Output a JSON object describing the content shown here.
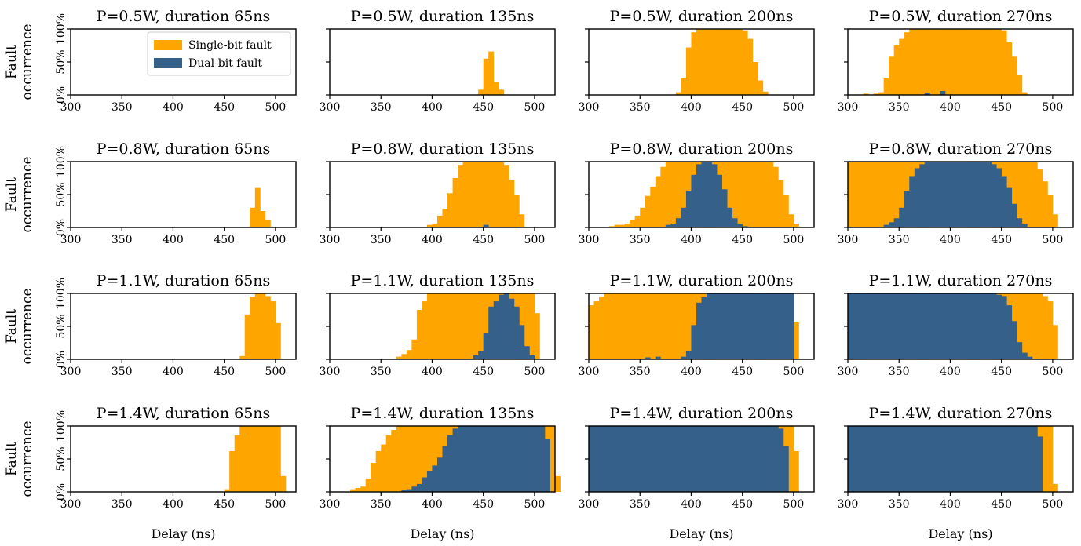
{
  "figure": {
    "colors": {
      "single": "#FFA500",
      "dual": "#34608A"
    },
    "legend": {
      "placement": "top-right of first panel",
      "items": [
        "Single-bit fault",
        "Dual-bit fault"
      ]
    },
    "ylabel_lines": [
      "Fault",
      "occurrence"
    ],
    "xlabel": "Delay (ns)",
    "xticks": [
      "300",
      "350",
      "400",
      "450",
      "500"
    ],
    "yticks": [
      "0%",
      "50%",
      "100%"
    ]
  },
  "chart_data": [
    {
      "type": "bar",
      "title": "P=0.5W, duration 65ns",
      "xlim": [
        300,
        520
      ],
      "ylim": [
        0,
        100
      ],
      "x_start": 300,
      "bin_width": 5,
      "single": [],
      "dual": []
    },
    {
      "type": "bar",
      "title": "P=0.5W, duration 135ns",
      "xlim": [
        300,
        520
      ],
      "ylim": [
        0,
        100
      ],
      "x_start": 445,
      "bin_width": 5,
      "single": [
        8,
        55,
        66,
        20,
        8
      ],
      "dual": []
    },
    {
      "type": "bar",
      "title": "P=0.5W, duration 200ns",
      "xlim": [
        300,
        520
      ],
      "ylim": [
        0,
        100
      ],
      "x_start": 385,
      "bin_width": 5,
      "single": [
        4,
        25,
        72,
        95,
        100,
        100,
        100,
        100,
        100,
        100,
        100,
        100,
        100,
        98,
        85,
        50,
        22,
        5
      ],
      "dual": []
    },
    {
      "type": "bar",
      "title": "P=0.5W, duration 270ns",
      "xlim": [
        300,
        520
      ],
      "ylim": [
        0,
        100
      ],
      "x_start": 315,
      "bin_width": 5,
      "single": [
        2,
        0,
        2,
        4,
        25,
        58,
        75,
        85,
        95,
        100,
        100,
        100,
        100,
        100,
        100,
        100,
        100,
        100,
        100,
        100,
        100,
        100,
        100,
        100,
        100,
        100,
        100,
        98,
        80,
        58,
        30,
        4
      ],
      "dual": [
        0,
        0,
        0,
        0,
        0,
        0,
        0,
        0,
        0,
        0,
        0,
        0,
        3,
        0,
        0,
        6,
        0,
        0,
        0,
        0,
        0,
        0,
        0,
        0,
        0,
        0,
        0,
        0,
        0,
        0,
        0,
        0
      ]
    },
    {
      "type": "bar",
      "title": "P=0.8W, duration 65ns",
      "xlim": [
        300,
        520
      ],
      "ylim": [
        0,
        100
      ],
      "x_start": 475,
      "bin_width": 5,
      "single": [
        30,
        60,
        25,
        12
      ],
      "dual": []
    },
    {
      "type": "bar",
      "title": "P=0.8W, duration 135ns",
      "xlim": [
        300,
        520
      ],
      "ylim": [
        0,
        100
      ],
      "x_start": 395,
      "bin_width": 5,
      "single": [
        4,
        6,
        18,
        28,
        52,
        75,
        95,
        100,
        100,
        100,
        100,
        100,
        100,
        100,
        100,
        95,
        72,
        50,
        20
      ],
      "dual": [
        0,
        0,
        0,
        0,
        0,
        0,
        0,
        0,
        0,
        0,
        0,
        4,
        0,
        0,
        0,
        0,
        0,
        0,
        0
      ]
    },
    {
      "type": "bar",
      "title": "P=0.8W, duration 200ns",
      "xlim": [
        300,
        520
      ],
      "ylim": [
        0,
        100
      ],
      "x_start": 320,
      "bin_width": 5,
      "single": [
        2,
        4,
        4,
        6,
        12,
        18,
        30,
        48,
        62,
        78,
        92,
        100,
        100,
        100,
        100,
        100,
        100,
        100,
        100,
        100,
        100,
        100,
        100,
        100,
        100,
        100,
        100,
        100,
        100,
        100,
        100,
        100,
        92,
        72,
        50,
        20,
        6
      ],
      "dual": [
        0,
        0,
        0,
        0,
        0,
        0,
        0,
        0,
        0,
        0,
        0,
        4,
        6,
        14,
        30,
        56,
        80,
        96,
        100,
        100,
        96,
        80,
        58,
        30,
        14,
        6,
        2,
        0,
        0,
        0,
        0,
        0,
        0,
        0,
        0,
        0,
        0
      ]
    },
    {
      "type": "bar",
      "title": "P=0.8W, duration 270ns",
      "xlim": [
        300,
        520
      ],
      "ylim": [
        0,
        100
      ],
      "x_start": 300,
      "bin_width": 5,
      "single": [
        100,
        100,
        100,
        100,
        100,
        100,
        100,
        100,
        100,
        100,
        100,
        100,
        100,
        100,
        100,
        100,
        100,
        100,
        100,
        100,
        100,
        100,
        100,
        100,
        100,
        100,
        100,
        100,
        100,
        100,
        100,
        100,
        100,
        100,
        100,
        100,
        100,
        88,
        70,
        50,
        20
      ],
      "dual": [
        0,
        0,
        0,
        0,
        0,
        0,
        0,
        4,
        8,
        14,
        30,
        56,
        78,
        90,
        96,
        100,
        100,
        100,
        100,
        100,
        100,
        100,
        100,
        100,
        100,
        100,
        100,
        100,
        96,
        90,
        78,
        60,
        36,
        14,
        6,
        0,
        0,
        0,
        0,
        0,
        0
      ]
    },
    {
      "type": "bar",
      "title": "P=1.1W, duration 65ns",
      "xlim": [
        300,
        520
      ],
      "ylim": [
        0,
        100
      ],
      "x_start": 465,
      "bin_width": 5,
      "single": [
        5,
        68,
        95,
        100,
        100,
        96,
        88,
        55
      ],
      "dual": []
    },
    {
      "type": "bar",
      "title": "P=1.1W, duration 135ns",
      "xlim": [
        300,
        520
      ],
      "ylim": [
        0,
        100
      ],
      "x_start": 365,
      "bin_width": 5,
      "single": [
        4,
        8,
        14,
        30,
        75,
        88,
        100,
        100,
        100,
        100,
        100,
        100,
        100,
        100,
        100,
        100,
        100,
        100,
        100,
        100,
        100,
        100,
        100,
        100,
        100,
        100,
        100,
        70
      ],
      "dual": [
        0,
        0,
        0,
        0,
        0,
        0,
        0,
        0,
        0,
        0,
        0,
        0,
        0,
        0,
        0,
        6,
        12,
        40,
        80,
        88,
        98,
        100,
        92,
        80,
        52,
        20,
        6,
        0
      ]
    },
    {
      "type": "bar",
      "title": "P=1.1W, duration 200ns",
      "xlim": [
        300,
        520
      ],
      "ylim": [
        0,
        100
      ],
      "x_start": 300,
      "bin_width": 5,
      "single": [
        82,
        88,
        95,
        100,
        100,
        100,
        100,
        100,
        100,
        100,
        100,
        100,
        100,
        100,
        100,
        100,
        100,
        100,
        100,
        100,
        100,
        100,
        100,
        100,
        100,
        100,
        100,
        100,
        100,
        100,
        100,
        100,
        100,
        100,
        100,
        100,
        100,
        100,
        100,
        100,
        56
      ],
      "dual": [
        0,
        0,
        0,
        0,
        0,
        0,
        0,
        0,
        0,
        0,
        0,
        3,
        0,
        4,
        0,
        0,
        0,
        0,
        4,
        12,
        52,
        86,
        94,
        100,
        100,
        100,
        100,
        100,
        100,
        100,
        100,
        100,
        100,
        100,
        100,
        100,
        100,
        100,
        100,
        100,
        0
      ]
    },
    {
      "type": "bar",
      "title": "P=1.1W, duration 270ns",
      "xlim": [
        300,
        520
      ],
      "ylim": [
        0,
        100
      ],
      "x_start": 300,
      "bin_width": 5,
      "single": [
        100,
        100,
        100,
        100,
        100,
        100,
        100,
        100,
        100,
        100,
        100,
        100,
        100,
        100,
        100,
        100,
        100,
        100,
        100,
        100,
        100,
        100,
        100,
        100,
        100,
        100,
        100,
        100,
        100,
        100,
        100,
        100,
        100,
        100,
        100,
        100,
        100,
        100,
        96,
        88,
        52
      ],
      "dual": [
        100,
        100,
        100,
        100,
        100,
        100,
        100,
        100,
        100,
        100,
        100,
        100,
        100,
        100,
        100,
        100,
        100,
        100,
        100,
        100,
        100,
        100,
        100,
        100,
        100,
        100,
        100,
        100,
        100,
        98,
        96,
        82,
        58,
        26,
        10,
        4,
        0,
        0,
        0,
        0,
        0
      ]
    },
    {
      "type": "bar",
      "title": "P=1.4W, duration 65ns",
      "xlim": [
        300,
        520
      ],
      "ylim": [
        0,
        100
      ],
      "x_start": 450,
      "bin_width": 5,
      "single": [
        4,
        62,
        86,
        100,
        100,
        100,
        100,
        100,
        100,
        100,
        100,
        24
      ],
      "dual": []
    },
    {
      "type": "bar",
      "title": "P=1.4W, duration 135ns",
      "xlim": [
        300,
        520
      ],
      "ylim": [
        0,
        100
      ],
      "x_start": 320,
      "bin_width": 5,
      "single": [
        4,
        6,
        8,
        20,
        44,
        62,
        72,
        86,
        94,
        100,
        100,
        100,
        100,
        100,
        100,
        100,
        100,
        100,
        100,
        100,
        100,
        100,
        100,
        100,
        100,
        100,
        100,
        100,
        100,
        100,
        100,
        100,
        100,
        100,
        100,
        100,
        100,
        100,
        100,
        100,
        24
      ],
      "dual": [
        0,
        0,
        0,
        0,
        0,
        0,
        0,
        0,
        0,
        0,
        3,
        4,
        8,
        12,
        22,
        32,
        40,
        52,
        70,
        86,
        96,
        100,
        100,
        100,
        100,
        100,
        100,
        100,
        100,
        100,
        100,
        100,
        100,
        100,
        100,
        100,
        100,
        100,
        80,
        0,
        0
      ]
    },
    {
      "type": "bar",
      "title": "P=1.4W, duration 200ns",
      "xlim": [
        300,
        520
      ],
      "ylim": [
        0,
        100
      ],
      "x_start": 300,
      "bin_width": 5,
      "single": [
        100,
        100,
        100,
        100,
        100,
        100,
        100,
        100,
        100,
        100,
        100,
        100,
        100,
        100,
        100,
        100,
        100,
        100,
        100,
        100,
        100,
        100,
        100,
        100,
        100,
        100,
        100,
        100,
        100,
        100,
        100,
        100,
        100,
        100,
        100,
        100,
        100,
        100,
        100,
        100,
        62
      ],
      "dual": [
        100,
        100,
        100,
        100,
        100,
        100,
        100,
        100,
        100,
        100,
        100,
        100,
        100,
        100,
        100,
        100,
        100,
        100,
        100,
        100,
        100,
        100,
        100,
        100,
        100,
        100,
        100,
        100,
        100,
        100,
        100,
        100,
        100,
        100,
        100,
        100,
        100,
        96,
        70,
        0,
        0
      ]
    },
    {
      "type": "bar",
      "title": "P=1.4W, duration 270ns",
      "xlim": [
        300,
        520
      ],
      "ylim": [
        0,
        100
      ],
      "x_start": 300,
      "bin_width": 5,
      "single": [
        100,
        100,
        100,
        100,
        100,
        100,
        100,
        100,
        100,
        100,
        100,
        100,
        100,
        100,
        100,
        100,
        100,
        100,
        100,
        100,
        100,
        100,
        100,
        100,
        100,
        100,
        100,
        100,
        100,
        100,
        100,
        100,
        100,
        100,
        100,
        100,
        100,
        100,
        100,
        100,
        12
      ],
      "dual": [
        100,
        100,
        100,
        100,
        100,
        100,
        100,
        100,
        100,
        100,
        100,
        100,
        100,
        100,
        100,
        100,
        100,
        100,
        100,
        100,
        100,
        100,
        100,
        100,
        100,
        100,
        100,
        100,
        100,
        100,
        100,
        100,
        100,
        100,
        100,
        100,
        100,
        84,
        0,
        0,
        0
      ]
    }
  ]
}
